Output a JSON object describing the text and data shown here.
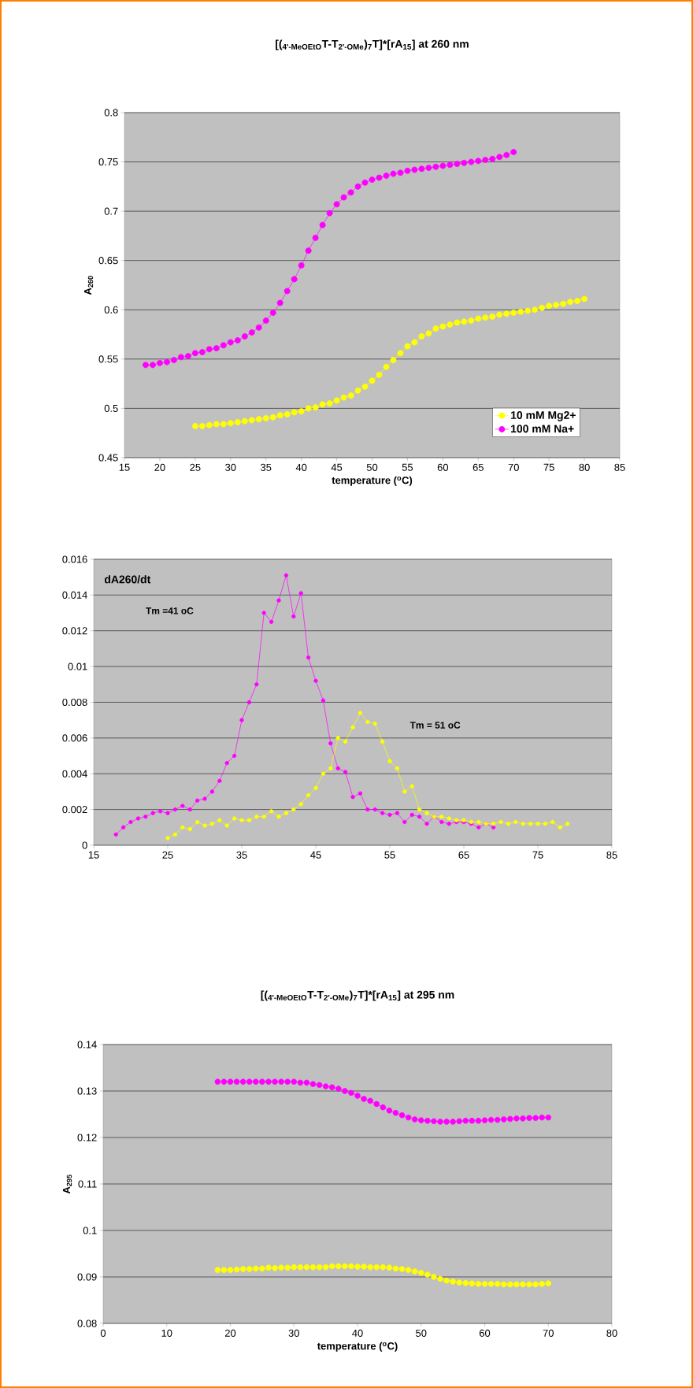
{
  "chart_data": [
    {
      "type": "line",
      "title": "[($_{4'-MeOEtO}$T-T$_{2'-OMe}$)$_{7}$T]*[rA$_{15}$] at 260 nm",
      "xlabel": "temperature ($^{o}$C)",
      "ylabel": "A$_{260}$",
      "xlim": [
        15,
        85
      ],
      "xticks": [
        15,
        20,
        25,
        30,
        35,
        40,
        45,
        50,
        55,
        60,
        65,
        70,
        75,
        80,
        85
      ],
      "ylim": [
        0.45,
        0.8
      ],
      "yticks": [
        0.45,
        0.5,
        0.55,
        0.6,
        0.65,
        0.7,
        0.75,
        0.8
      ],
      "grid": "y",
      "legend": "bottom right",
      "marker": "circle",
      "series": [
        {
          "name": "10 mM Mg2+",
          "color": "#ffff00",
          "x": [
            25,
            26,
            27,
            28,
            29,
            30,
            31,
            32,
            33,
            34,
            35,
            36,
            37,
            38,
            39,
            40,
            41,
            42,
            43,
            44,
            45,
            46,
            47,
            48,
            49,
            50,
            51,
            52,
            53,
            54,
            55,
            56,
            57,
            58,
            59,
            60,
            61,
            62,
            63,
            64,
            65,
            66,
            67,
            68,
            69,
            70,
            71,
            72,
            73,
            74,
            75,
            76,
            77,
            78,
            79,
            80
          ],
          "values": [
            0.482,
            0.482,
            0.483,
            0.484,
            0.484,
            0.485,
            0.486,
            0.487,
            0.488,
            0.489,
            0.49,
            0.491,
            0.493,
            0.494,
            0.496,
            0.497,
            0.5,
            0.501,
            0.504,
            0.505,
            0.508,
            0.511,
            0.513,
            0.518,
            0.522,
            0.528,
            0.534,
            0.542,
            0.549,
            0.556,
            0.563,
            0.567,
            0.573,
            0.576,
            0.581,
            0.583,
            0.585,
            0.587,
            0.588,
            0.589,
            0.591,
            0.592,
            0.593,
            0.595,
            0.596,
            0.597,
            0.598,
            0.599,
            0.6,
            0.602,
            0.604,
            0.605,
            0.606,
            0.608,
            0.609,
            0.611
          ]
        },
        {
          "name": "100 mM Na+",
          "color": "#ff00ff",
          "x": [
            18,
            19,
            20,
            21,
            22,
            23,
            24,
            25,
            26,
            27,
            28,
            29,
            30,
            31,
            32,
            33,
            34,
            35,
            36,
            37,
            38,
            39,
            40,
            41,
            42,
            43,
            44,
            45,
            46,
            47,
            48,
            49,
            50,
            51,
            52,
            53,
            54,
            55,
            56,
            57,
            58,
            59,
            60,
            61,
            62,
            63,
            64,
            65,
            66,
            67,
            68,
            69,
            70
          ],
          "values": [
            0.544,
            0.544,
            0.546,
            0.547,
            0.549,
            0.552,
            0.553,
            0.556,
            0.557,
            0.56,
            0.561,
            0.564,
            0.567,
            0.569,
            0.573,
            0.577,
            0.582,
            0.589,
            0.597,
            0.607,
            0.619,
            0.631,
            0.645,
            0.66,
            0.673,
            0.686,
            0.698,
            0.707,
            0.714,
            0.719,
            0.725,
            0.729,
            0.732,
            0.734,
            0.736,
            0.738,
            0.739,
            0.741,
            0.742,
            0.743,
            0.744,
            0.745,
            0.746,
            0.747,
            0.748,
            0.749,
            0.75,
            0.751,
            0.752,
            0.753,
            0.755,
            0.757,
            0.76
          ]
        }
      ]
    },
    {
      "type": "line",
      "annotations": [
        "dA260/dt",
        "Tm =41 oC",
        "Tm = 51 oC"
      ],
      "xlim": [
        15,
        85
      ],
      "xticks": [
        15,
        25,
        35,
        45,
        55,
        65,
        75,
        85
      ],
      "ylim": [
        0,
        0.016
      ],
      "yticks": [
        0,
        0.002,
        0.004,
        0.006,
        0.008,
        0.01,
        0.012,
        0.014,
        0.016
      ],
      "grid": "y",
      "marker": "circle",
      "series": [
        {
          "color": "#ff00ff",
          "x": [
            18,
            19,
            20,
            21,
            22,
            23,
            24,
            25,
            26,
            27,
            28,
            29,
            30,
            31,
            32,
            33,
            34,
            35,
            36,
            37,
            38,
            39,
            40,
            41,
            42,
            43,
            44,
            45,
            46,
            47,
            48,
            49,
            50,
            51,
            52,
            53,
            54,
            55,
            56,
            57,
            58,
            59,
            60,
            61,
            62,
            63,
            64,
            65,
            66,
            67,
            68,
            69
          ],
          "values": [
            0.0006,
            0.001,
            0.0013,
            0.0015,
            0.0016,
            0.0018,
            0.0019,
            0.0018,
            0.002,
            0.0022,
            0.002,
            0.0025,
            0.0026,
            0.003,
            0.0036,
            0.0046,
            0.005,
            0.007,
            0.008,
            0.009,
            0.013,
            0.0125,
            0.0137,
            0.0151,
            0.0128,
            0.0141,
            0.0105,
            0.0092,
            0.0081,
            0.0057,
            0.0043,
            0.0041,
            0.0027,
            0.0029,
            0.002,
            0.002,
            0.0018,
            0.0017,
            0.0018,
            0.0013,
            0.0017,
            0.0016,
            0.0012,
            0.0016,
            0.0013,
            0.0012,
            0.0013,
            0.0013,
            0.0012,
            0.001,
            0.0012,
            0.001
          ]
        },
        {
          "color": "#ffff00",
          "x": [
            25,
            26,
            27,
            28,
            29,
            30,
            31,
            32,
            33,
            34,
            35,
            36,
            37,
            38,
            39,
            40,
            41,
            42,
            43,
            44,
            45,
            46,
            47,
            48,
            49,
            50,
            51,
            52,
            53,
            54,
            55,
            56,
            57,
            58,
            59,
            60,
            61,
            62,
            63,
            64,
            65,
            66,
            67,
            68,
            69,
            70,
            71,
            72,
            73,
            74,
            75,
            76,
            77,
            78,
            79
          ],
          "values": [
            0.0004,
            0.0006,
            0.001,
            0.0009,
            0.0013,
            0.0011,
            0.0012,
            0.0014,
            0.0011,
            0.0015,
            0.0014,
            0.0014,
            0.0016,
            0.0016,
            0.0019,
            0.0016,
            0.0018,
            0.002,
            0.0023,
            0.0028,
            0.0032,
            0.004,
            0.0043,
            0.006,
            0.0058,
            0.0066,
            0.0074,
            0.0069,
            0.0068,
            0.0058,
            0.0047,
            0.0043,
            0.003,
            0.0033,
            0.002,
            0.0018,
            0.0016,
            0.0016,
            0.0015,
            0.0014,
            0.0014,
            0.0013,
            0.0013,
            0.0012,
            0.0012,
            0.0013,
            0.0012,
            0.0013,
            0.0012,
            0.0012,
            0.0012,
            0.0012,
            0.0013,
            0.001,
            0.0012
          ]
        }
      ]
    },
    {
      "type": "line",
      "title": "[($_{4'-MeOEtO}$T-T$_{2'-OMe}$)$_{7}$T]*[rA$_{15}$] at 295 nm",
      "xlabel": "temperature ($^{o}$C)",
      "ylabel": "A$_{295}$",
      "xlim": [
        0,
        80
      ],
      "xticks": [
        0,
        10,
        20,
        30,
        40,
        50,
        60,
        70,
        80
      ],
      "ylim": [
        0.08,
        0.14
      ],
      "yticks": [
        0.08,
        0.09,
        0.1,
        0.11,
        0.12,
        0.13,
        0.14
      ],
      "grid": "y",
      "marker": "circle",
      "series": [
        {
          "color": "#ff00ff",
          "x": [
            18,
            19,
            20,
            21,
            22,
            23,
            24,
            25,
            26,
            27,
            28,
            29,
            30,
            31,
            32,
            33,
            34,
            35,
            36,
            37,
            38,
            39,
            40,
            41,
            42,
            43,
            44,
            45,
            46,
            47,
            48,
            49,
            50,
            51,
            52,
            53,
            54,
            55,
            56,
            57,
            58,
            59,
            60,
            61,
            62,
            63,
            64,
            65,
            66,
            67,
            68,
            69,
            70
          ],
          "values": [
            0.132,
            0.132,
            0.132,
            0.132,
            0.132,
            0.132,
            0.132,
            0.132,
            0.132,
            0.132,
            0.132,
            0.132,
            0.132,
            0.1318,
            0.1318,
            0.1315,
            0.1313,
            0.131,
            0.1308,
            0.1305,
            0.13,
            0.1296,
            0.129,
            0.1283,
            0.1279,
            0.1272,
            0.1265,
            0.1258,
            0.1253,
            0.1248,
            0.1243,
            0.1239,
            0.1237,
            0.1236,
            0.1235,
            0.1234,
            0.1234,
            0.1234,
            0.1235,
            0.1236,
            0.1236,
            0.1236,
            0.1237,
            0.1238,
            0.1238,
            0.1239,
            0.124,
            0.1241,
            0.1241,
            0.1242,
            0.1242,
            0.1243,
            0.1243
          ]
        },
        {
          "color": "#ffff00",
          "x": [
            18,
            19,
            20,
            21,
            22,
            23,
            24,
            25,
            26,
            27,
            28,
            29,
            30,
            31,
            32,
            33,
            34,
            35,
            36,
            37,
            38,
            39,
            40,
            41,
            42,
            43,
            44,
            45,
            46,
            47,
            48,
            49,
            50,
            51,
            52,
            53,
            54,
            55,
            56,
            57,
            58,
            59,
            60,
            61,
            62,
            63,
            64,
            65,
            66,
            67,
            68,
            69,
            70
          ],
          "values": [
            0.0915,
            0.0915,
            0.0915,
            0.0916,
            0.0917,
            0.0917,
            0.0918,
            0.0918,
            0.092,
            0.0919,
            0.092,
            0.092,
            0.0921,
            0.0921,
            0.0921,
            0.0921,
            0.0921,
            0.0921,
            0.0923,
            0.0923,
            0.0923,
            0.0923,
            0.0922,
            0.0922,
            0.0921,
            0.0921,
            0.0921,
            0.092,
            0.0918,
            0.0917,
            0.0915,
            0.0912,
            0.0909,
            0.0905,
            0.09,
            0.0896,
            0.0892,
            0.089,
            0.0888,
            0.0887,
            0.0886,
            0.0885,
            0.0885,
            0.0885,
            0.0885,
            0.0884,
            0.0884,
            0.0884,
            0.0884,
            0.0884,
            0.0884,
            0.0885,
            0.0886
          ]
        }
      ]
    }
  ]
}
